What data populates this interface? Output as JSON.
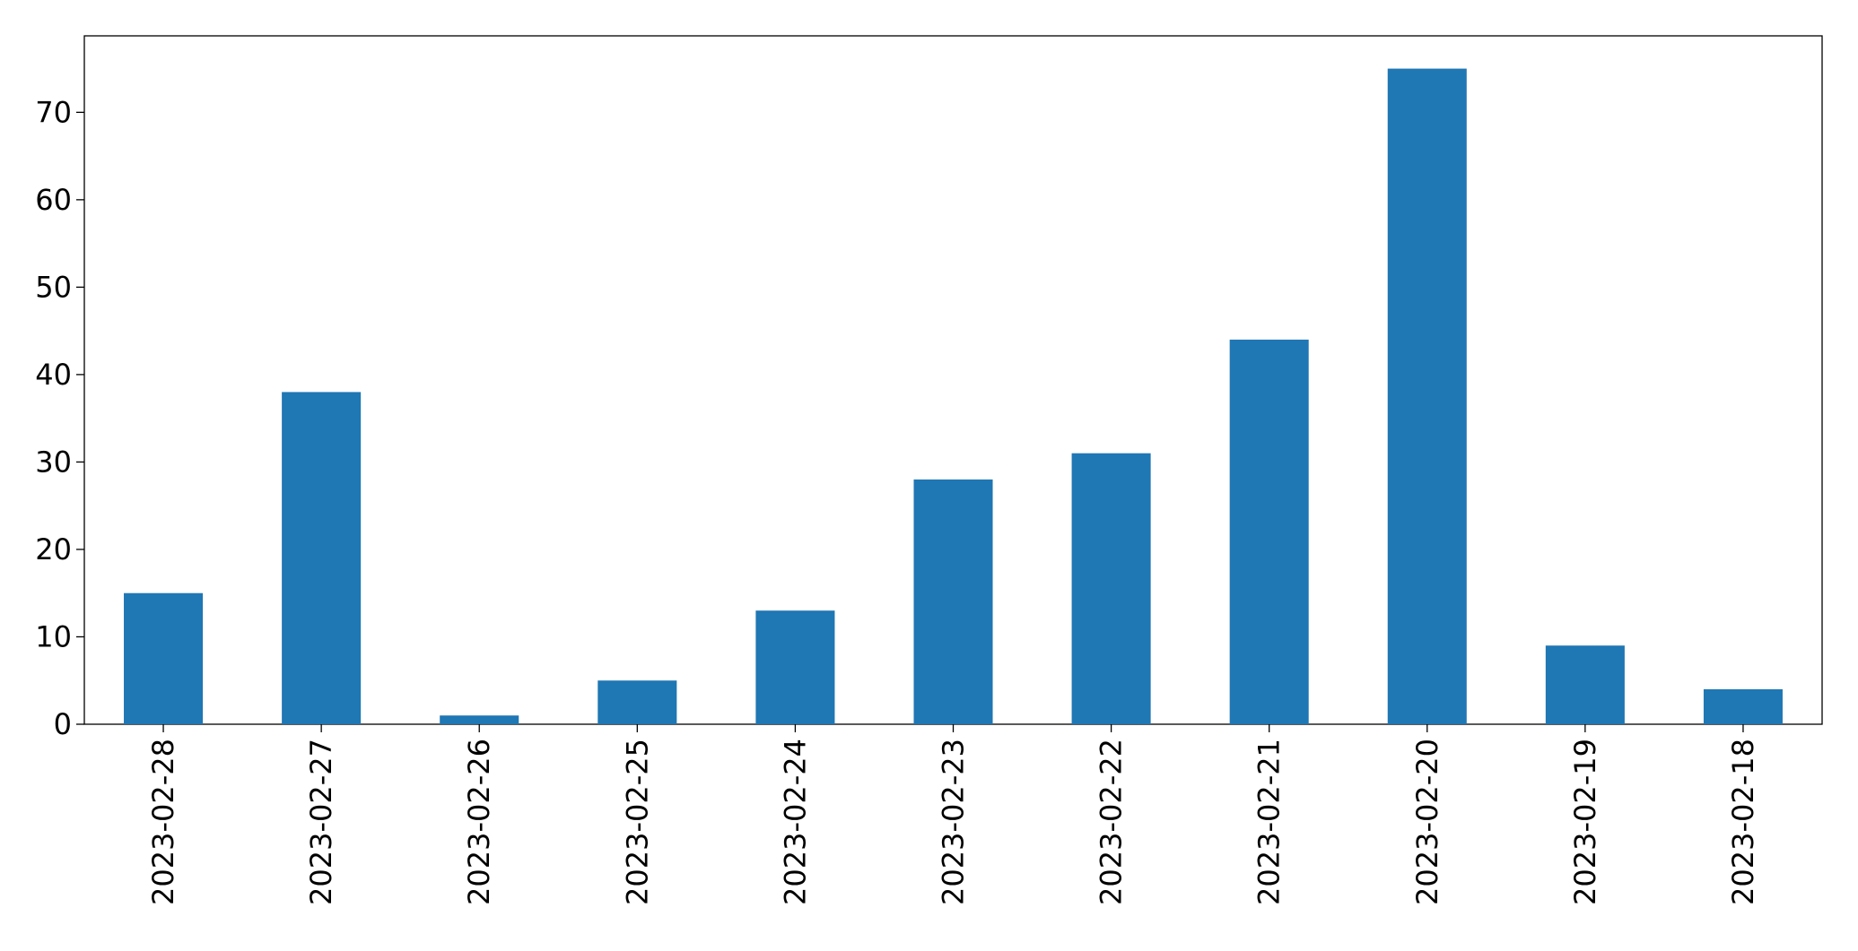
{
  "chart_data": {
    "type": "bar",
    "categories": [
      "2023-02-28",
      "2023-02-27",
      "2023-02-26",
      "2023-02-25",
      "2023-02-24",
      "2023-02-23",
      "2023-02-22",
      "2023-02-21",
      "2023-02-20",
      "2023-02-19",
      "2023-02-18"
    ],
    "values": [
      15,
      38,
      1,
      5,
      13,
      28,
      31,
      44,
      75,
      9,
      4
    ],
    "color": "#1f77b4",
    "ylim": [
      0,
      78.75
    ],
    "yticks": [
      0,
      10,
      20,
      30,
      40,
      50,
      60,
      70
    ],
    "grid": false
  }
}
